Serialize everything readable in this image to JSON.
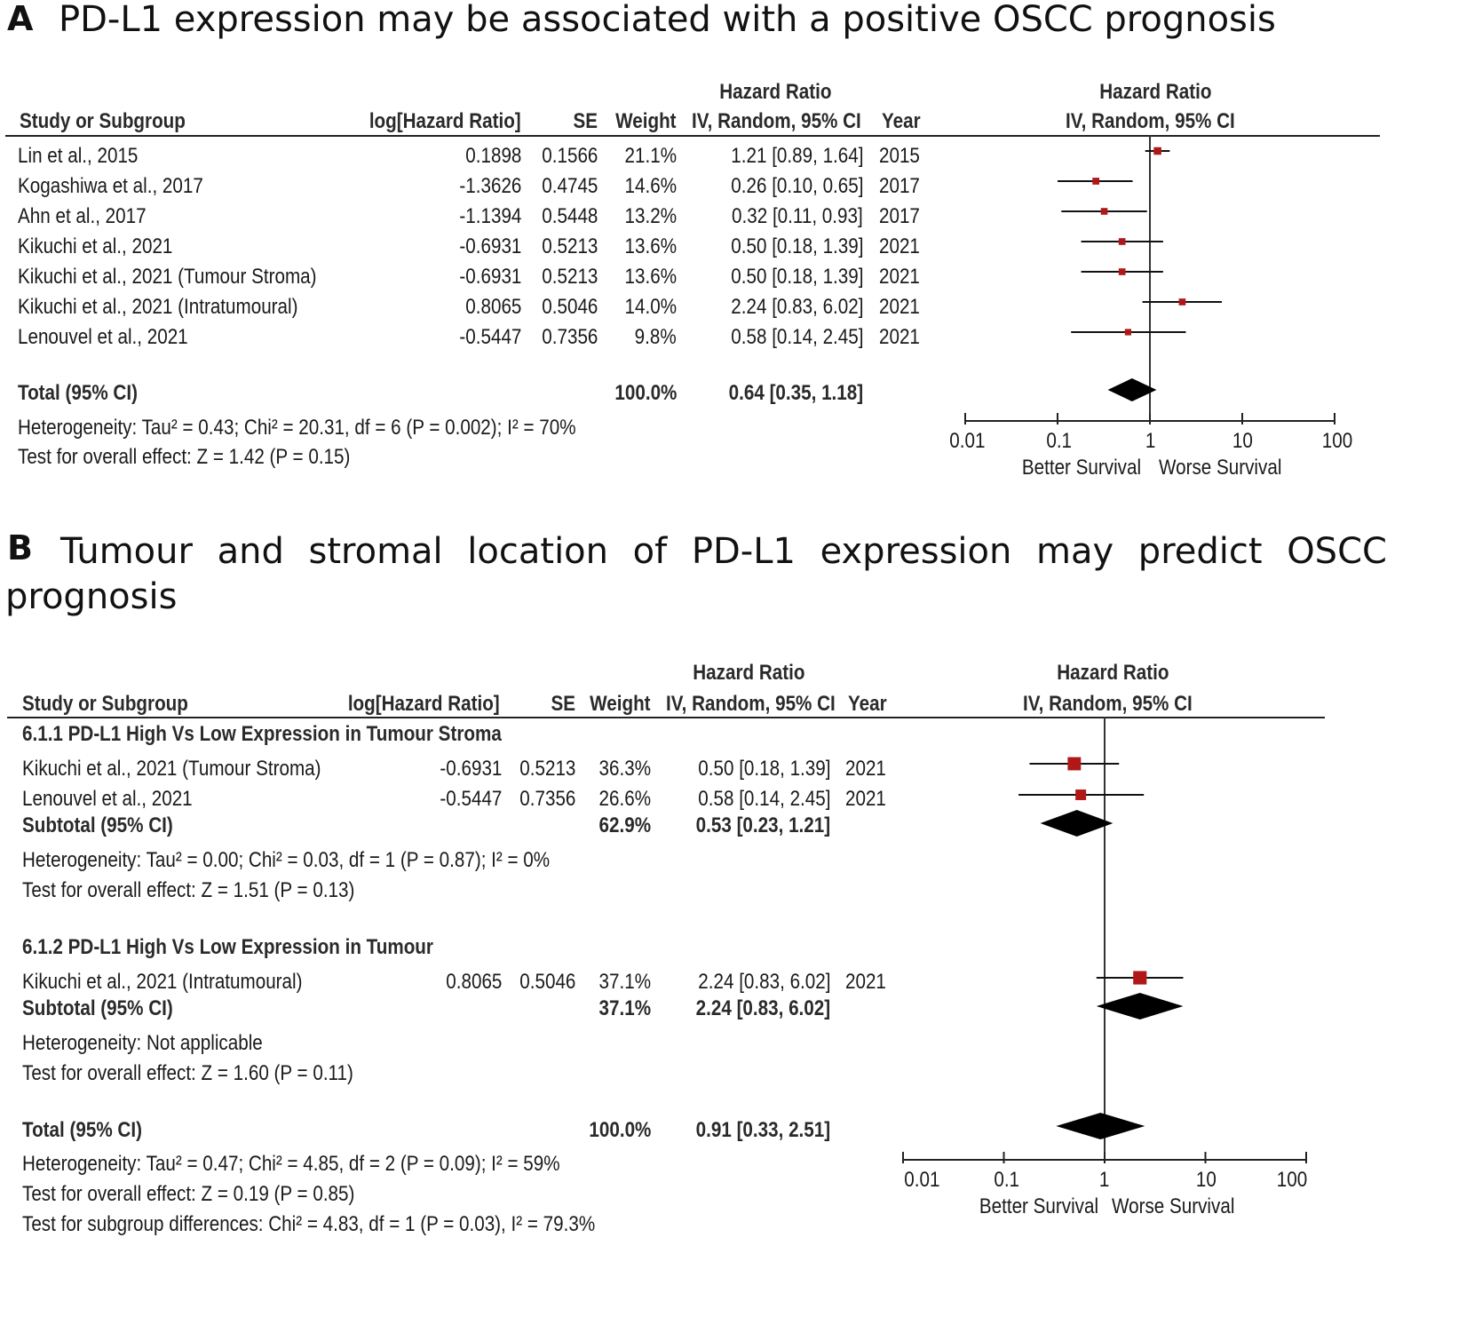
{
  "panels": [
    {
      "id": "A",
      "letter": "A",
      "title": "PD-L1 expression may be associated with a positive OSCC prognosis",
      "headers": {
        "study": "Study or Subgroup",
        "loghr": "log[Hazard Ratio]",
        "se": "SE",
        "weight": "Weight",
        "hr_top": "Hazard Ratio",
        "hr_bottom": "IV, Random, 95% CI",
        "year": "Year",
        "plot_top": "Hazard Ratio",
        "plot_bottom": "IV, Random, 95% CI"
      },
      "studies": [
        {
          "study": "Lin et al., 2015",
          "loghr": "0.1898",
          "se": "0.1566",
          "weight": "21.1%",
          "ci_text": "1.21 [0.89, 1.64]",
          "year": "2015"
        },
        {
          "study": "Kogashiwa et al., 2017",
          "loghr": "-1.3626",
          "se": "0.4745",
          "weight": "14.6%",
          "ci_text": "0.26 [0.10, 0.65]",
          "year": "2017"
        },
        {
          "study": "Ahn et al., 2017",
          "loghr": "-1.1394",
          "se": "0.5448",
          "weight": "13.2%",
          "ci_text": "0.32 [0.11, 0.93]",
          "year": "2017"
        },
        {
          "study": "Kikuchi et al., 2021",
          "loghr": "-0.6931",
          "se": "0.5213",
          "weight": "13.6%",
          "ci_text": "0.50 [0.18, 1.39]",
          "year": "2021"
        },
        {
          "study": "Kikuchi et al., 2021 (Tumour Stroma)",
          "loghr": "-0.6931",
          "se": "0.5213",
          "weight": "13.6%",
          "ci_text": "0.50 [0.18, 1.39]",
          "year": "2021"
        },
        {
          "study": "Kikuchi et al., 2021 (Intratumoural)",
          "loghr": "0.8065",
          "se": "0.5046",
          "weight": "14.0%",
          "ci_text": "2.24 [0.83, 6.02]",
          "year": "2021"
        },
        {
          "study": "Lenouvel et al., 2021",
          "loghr": "-0.5447",
          "se": "0.7356",
          "weight": "9.8%",
          "ci_text": "0.58 [0.14, 2.45]",
          "year": "2021"
        }
      ],
      "total": {
        "label": "Total (95% CI)",
        "weight": "100.0%",
        "ci_text": "0.64 [0.35, 1.18]"
      },
      "footer": [
        "Heterogeneity: Tau² = 0.43; Chi² = 20.31, df = 6 (P = 0.002); I² = 70%",
        "Test for overall effect: Z = 1.42 (P = 0.15)"
      ],
      "axis": {
        "ticks": [
          "0.01",
          "0.1",
          "1",
          "10",
          "100"
        ],
        "left_label": "Better Survival",
        "right_label": "Worse Survival"
      }
    },
    {
      "id": "B",
      "letter": "B",
      "title_line1": [
        "Tumour",
        "and",
        "stromal",
        "location",
        "of",
        "PD-L1",
        "expression",
        "may",
        "predict",
        "OSCC"
      ],
      "title_line2": "prognosis",
      "headers": {
        "study": "Study or Subgroup",
        "loghr": "log[Hazard Ratio]",
        "se": "SE",
        "weight": "Weight",
        "hr_top": "Hazard Ratio",
        "hr_bottom": "IV, Random, 95% CI",
        "year": "Year",
        "plot_top": "Hazard Ratio",
        "plot_bottom": "IV, Random, 95% CI"
      },
      "subgroup1": {
        "heading": "6.1.1 PD-L1 High Vs Low Expression in Tumour Stroma",
        "studies": [
          {
            "study": "Kikuchi et al., 2021 (Tumour Stroma)",
            "loghr": "-0.6931",
            "se": "0.5213",
            "weight": "36.3%",
            "ci_text": "0.50 [0.18, 1.39]",
            "year": "2021"
          },
          {
            "study": "Lenouvel et al., 2021",
            "loghr": "-0.5447",
            "se": "0.7356",
            "weight": "26.6%",
            "ci_text": "0.58 [0.14, 2.45]",
            "year": "2021"
          }
        ],
        "subtotal": {
          "label": "Subtotal (95% CI)",
          "weight": "62.9%",
          "ci_text": "0.53 [0.23, 1.21]"
        },
        "footer": [
          "Heterogeneity: Tau² = 0.00; Chi² = 0.03, df = 1 (P = 0.87); I² = 0%",
          "Test for overall effect: Z = 1.51 (P = 0.13)"
        ]
      },
      "subgroup2": {
        "heading": "6.1.2 PD-L1 High Vs Low Expression in Tumour",
        "studies": [
          {
            "study": "Kikuchi et al., 2021 (Intratumoural)",
            "loghr": "0.8065",
            "se": "0.5046",
            "weight": "37.1%",
            "ci_text": "2.24 [0.83, 6.02]",
            "year": "2021"
          }
        ],
        "subtotal": {
          "label": "Subtotal (95% CI)",
          "weight": "37.1%",
          "ci_text": "2.24 [0.83, 6.02]"
        },
        "footer": [
          "Heterogeneity: Not applicable",
          "Test for overall effect: Z = 1.60 (P = 0.11)"
        ]
      },
      "total": {
        "label": "Total (95% CI)",
        "weight": "100.0%",
        "ci_text": "0.91 [0.33, 2.51]"
      },
      "footer": [
        "Heterogeneity: Tau² = 0.47; Chi² = 4.85, df = 2 (P = 0.09); I² = 59%",
        "Test for overall effect: Z = 0.19 (P = 0.85)",
        "Test for subgroup differences: Chi² = 4.83, df = 1 (P = 0.03), I² = 79.3%"
      ],
      "axis": {
        "ticks": [
          "0.01",
          "0.1",
          "1",
          "10",
          "100"
        ],
        "left_label": "Better Survival",
        "right_label": "Worse Survival"
      }
    }
  ],
  "chart_data": [
    {
      "type": "forest",
      "title": "PD-L1 expression may be associated with a positive OSCC prognosis",
      "xscale": "log",
      "xlim": [
        0.01,
        100
      ],
      "null_value": 1,
      "xlabel_left": "Better Survival",
      "xlabel_right": "Worse Survival",
      "studies": [
        {
          "name": "Lin et al., 2015",
          "hr": 1.21,
          "lo": 0.89,
          "hi": 1.64,
          "weight": 21.1
        },
        {
          "name": "Kogashiwa et al., 2017",
          "hr": 0.26,
          "lo": 0.1,
          "hi": 0.65,
          "weight": 14.6
        },
        {
          "name": "Ahn et al., 2017",
          "hr": 0.32,
          "lo": 0.11,
          "hi": 0.93,
          "weight": 13.2
        },
        {
          "name": "Kikuchi et al., 2021",
          "hr": 0.5,
          "lo": 0.18,
          "hi": 1.39,
          "weight": 13.6
        },
        {
          "name": "Kikuchi et al., 2021 (Tumour Stroma)",
          "hr": 0.5,
          "lo": 0.18,
          "hi": 1.39,
          "weight": 13.6
        },
        {
          "name": "Kikuchi et al., 2021 (Intratumoural)",
          "hr": 2.24,
          "lo": 0.83,
          "hi": 6.02,
          "weight": 14.0
        },
        {
          "name": "Lenouvel et al., 2021",
          "hr": 0.58,
          "lo": 0.14,
          "hi": 2.45,
          "weight": 9.8
        }
      ],
      "summaries": [
        {
          "name": "Total (95% CI)",
          "hr": 0.64,
          "lo": 0.35,
          "hi": 1.18
        }
      ]
    },
    {
      "type": "forest",
      "title": "Tumour and stromal location of PD-L1 expression may predict OSCC prognosis",
      "xscale": "log",
      "xlim": [
        0.01,
        100
      ],
      "null_value": 1,
      "xlabel_left": "Better Survival",
      "xlabel_right": "Worse Survival",
      "studies": [
        {
          "name": "Kikuchi et al., 2021 (Tumour Stroma)",
          "hr": 0.5,
          "lo": 0.18,
          "hi": 1.39,
          "weight": 36.3
        },
        {
          "name": "Lenouvel et al., 2021",
          "hr": 0.58,
          "lo": 0.14,
          "hi": 2.45,
          "weight": 26.6
        },
        {
          "name": "Kikuchi et al., 2021 (Intratumoural)",
          "hr": 2.24,
          "lo": 0.83,
          "hi": 6.02,
          "weight": 37.1
        }
      ],
      "summaries": [
        {
          "name": "Subtotal (95% CI) 6.1.1",
          "hr": 0.53,
          "lo": 0.23,
          "hi": 1.21
        },
        {
          "name": "Subtotal (95% CI) 6.1.2",
          "hr": 2.24,
          "lo": 0.83,
          "hi": 6.02
        },
        {
          "name": "Total (95% CI)",
          "hr": 0.91,
          "lo": 0.33,
          "hi": 2.51
        }
      ]
    }
  ]
}
